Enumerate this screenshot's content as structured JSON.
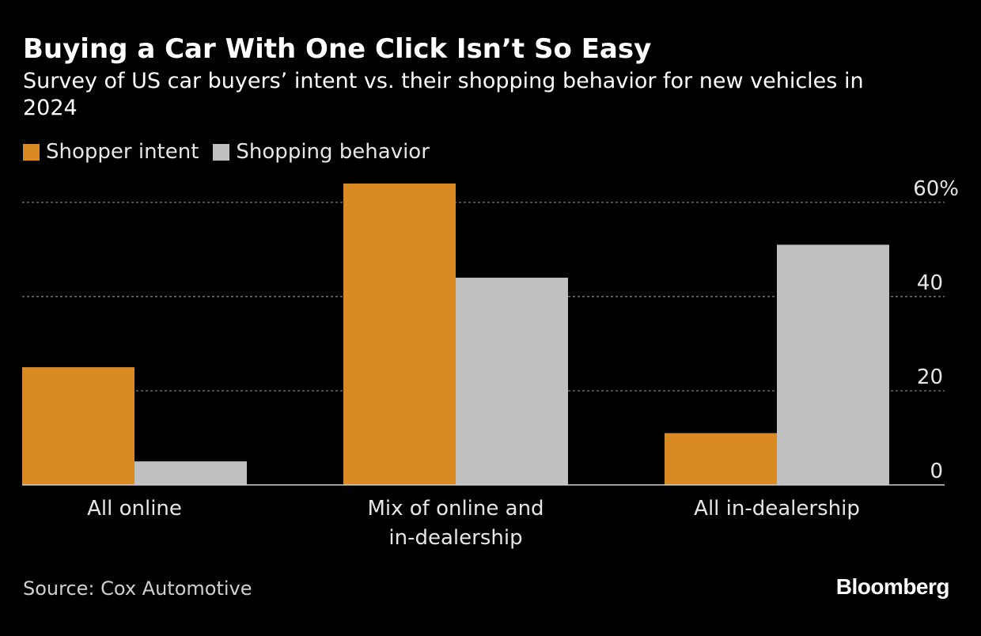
{
  "chart_data": {
    "type": "bar",
    "title": "Buying a Car With One Click Isn’t So Easy",
    "subtitle": "Survey of US car buyers’ intent vs. their shopping behavior for new vehicles in 2024",
    "categories": [
      [
        "All online"
      ],
      [
        "Mix of online and",
        "in-dealership"
      ],
      [
        "All in-dealership"
      ]
    ],
    "series": [
      {
        "name": "Shopper intent",
        "color": "#d98a22",
        "values": [
          25,
          64,
          11
        ]
      },
      {
        "name": "Shopping behavior",
        "color": "#c0c0c0",
        "values": [
          5,
          44,
          51
        ]
      }
    ],
    "ylim": [
      0,
      64
    ],
    "yticks": [
      {
        "value": 0,
        "label": "0"
      },
      {
        "value": 20,
        "label": "20"
      },
      {
        "value": 40,
        "label": "40"
      },
      {
        "value": 60,
        "label": "60%"
      }
    ],
    "grid": true,
    "legend_position": "top-left",
    "xlabel": "",
    "ylabel": ""
  },
  "footer": {
    "source": "Source: Cox Automotive",
    "brand": "Bloomberg"
  }
}
